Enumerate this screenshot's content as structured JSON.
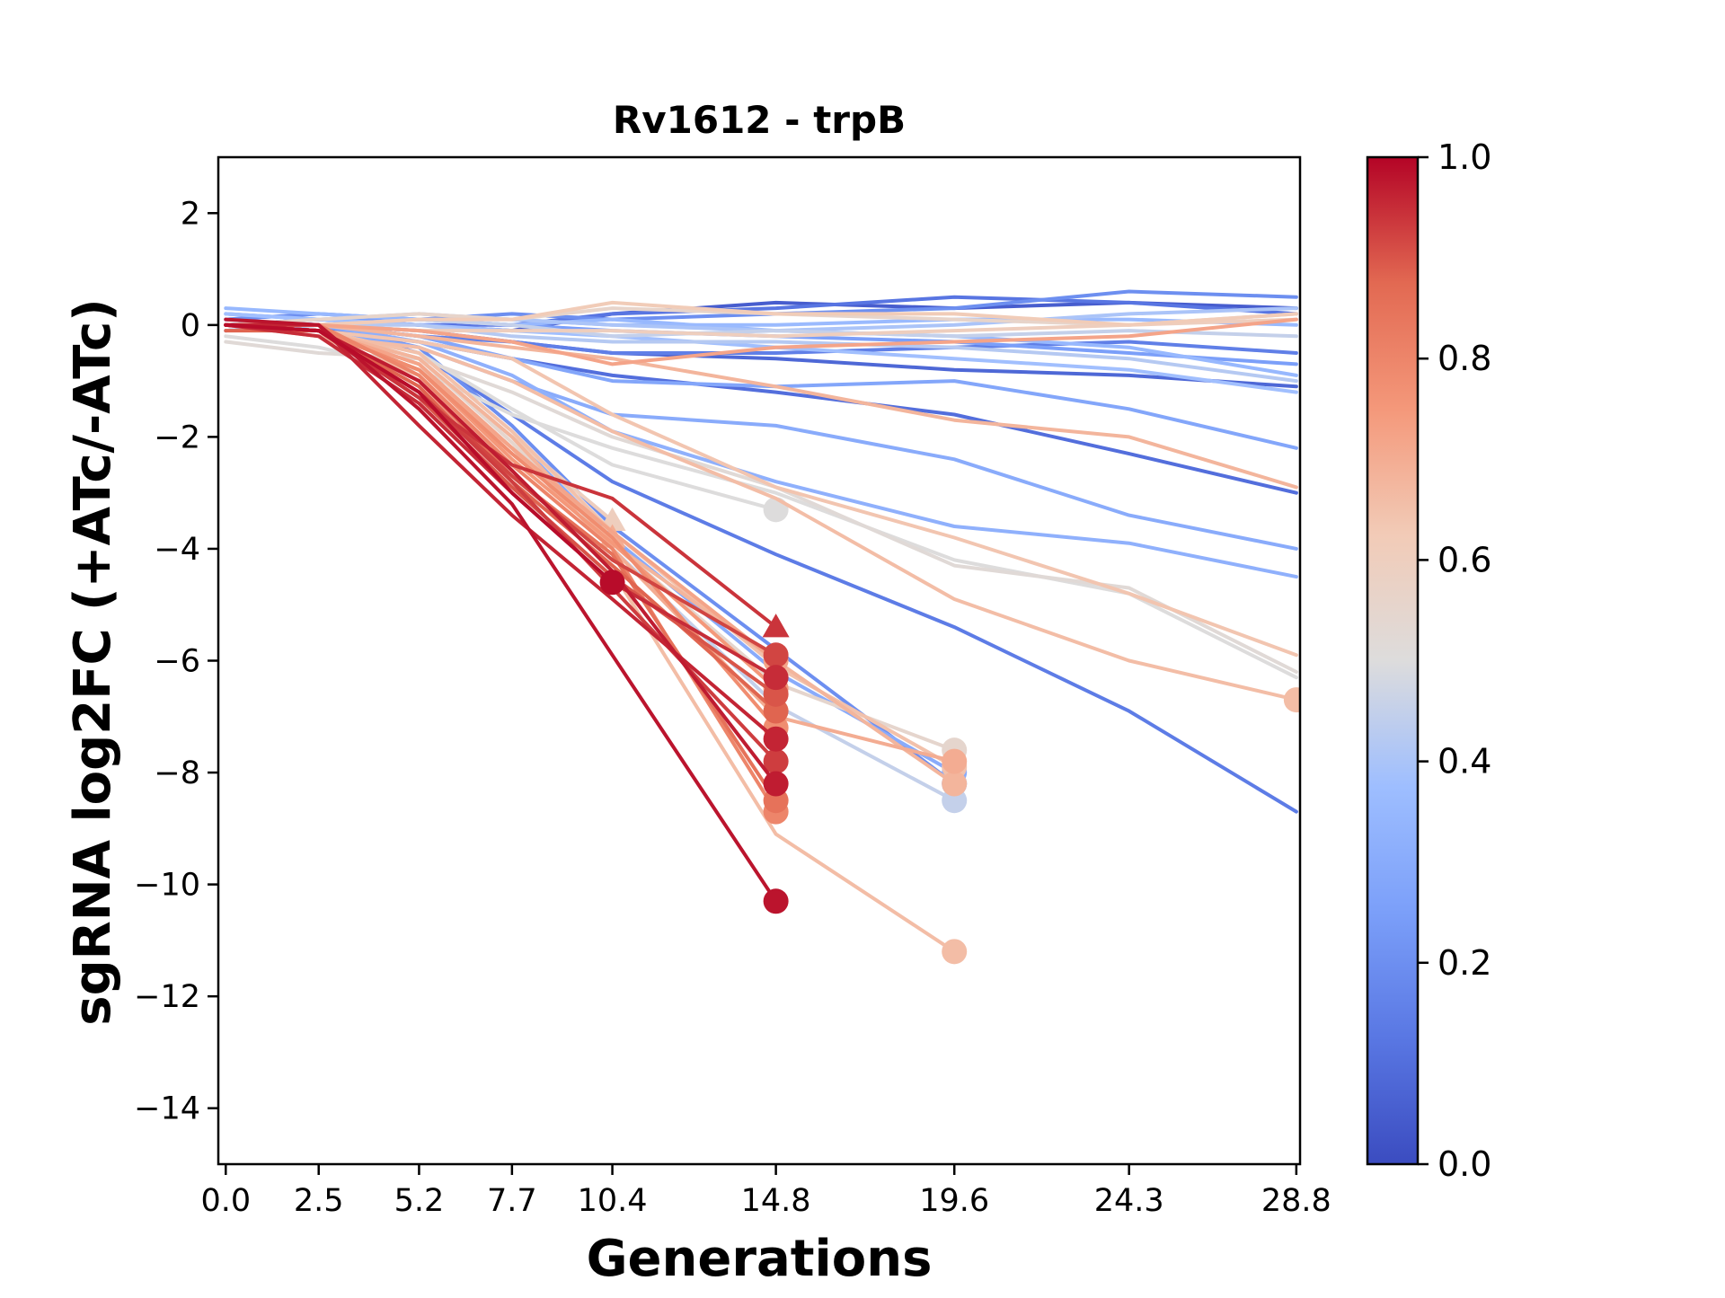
{
  "chart_data": {
    "type": "line",
    "title": "Rv1612 - trpB",
    "xlabel": "Generations",
    "ylabel": "sgRNA log2FC (+ATc/-ATc)",
    "x_ticks": [
      0.0,
      2.5,
      5.2,
      7.7,
      10.4,
      14.8,
      19.6,
      24.3,
      28.8
    ],
    "x_tick_labels": [
      "0.0",
      "2.5",
      "5.2",
      "7.7",
      "10.4",
      "14.8",
      "19.6",
      "24.3",
      "28.8"
    ],
    "xlim": [
      -0.2,
      28.9
    ],
    "ylim": [
      -15,
      3
    ],
    "y_ticks": [
      2,
      0,
      -2,
      -4,
      -6,
      -8,
      -10,
      -12,
      -14
    ],
    "y_tick_labels": [
      "2",
      "0",
      "−2",
      "−4",
      "−6",
      "−8",
      "−10",
      "−12",
      "−14"
    ],
    "colorbar": {
      "colormap": "coolwarm",
      "range": [
        0.0,
        1.0
      ],
      "ticks": [
        0.0,
        0.2,
        0.4,
        0.6,
        0.8,
        1.0
      ],
      "tick_labels": [
        "0.0",
        "0.2",
        "0.4",
        "0.6",
        "0.8",
        "1.0"
      ]
    },
    "grid": false,
    "legend": "none",
    "series": [
      {
        "c": 0.05,
        "x": [
          0,
          2.5,
          5.2,
          7.7,
          10.4,
          14.8,
          19.6,
          24.3,
          28.8
        ],
        "y": [
          0.0,
          0.1,
          0.0,
          -0.1,
          0.2,
          0.4,
          0.3,
          0.4,
          0.3
        ]
      },
      {
        "c": 0.08,
        "x": [
          0,
          2.5,
          5.2,
          7.7,
          10.4,
          14.8,
          19.6,
          24.3,
          28.8
        ],
        "y": [
          0.0,
          0.0,
          -0.1,
          -0.3,
          -0.5,
          -0.6,
          -0.8,
          -0.9,
          -1.1
        ]
      },
      {
        "c": 0.12,
        "x": [
          0,
          2.5,
          5.2,
          7.7,
          10.4,
          14.8,
          19.6,
          24.3,
          28.8
        ],
        "y": [
          0.0,
          0.1,
          0.0,
          0.0,
          0.2,
          0.3,
          0.5,
          0.4,
          0.2
        ]
      },
      {
        "c": 0.15,
        "x": [
          0,
          2.5,
          5.2,
          7.7,
          10.4,
          14.8,
          19.6,
          24.3,
          28.8
        ],
        "y": [
          -0.1,
          0.0,
          -0.2,
          -0.3,
          -0.5,
          -0.5,
          -0.4,
          -0.3,
          -0.5
        ]
      },
      {
        "c": 0.1,
        "x": [
          0,
          2.5,
          5.2,
          7.7,
          10.4,
          14.8,
          19.6,
          24.3,
          28.8
        ],
        "y": [
          0.0,
          -0.1,
          -0.3,
          -0.6,
          -0.9,
          -1.2,
          -1.6,
          -2.3,
          -3.0
        ]
      },
      {
        "c": 0.14,
        "x": [
          0,
          2.5,
          5.2,
          7.7,
          10.4,
          14.8,
          19.6,
          24.3,
          28.8
        ],
        "y": [
          0.0,
          0.0,
          -0.5,
          -1.6,
          -2.8,
          -4.1,
          -5.4,
          -6.9,
          -8.7
        ]
      },
      {
        "c": 0.2,
        "x": [
          0,
          2.5,
          5.2,
          7.7,
          10.4,
          14.8,
          19.6,
          24.3,
          28.8
        ],
        "y": [
          0.1,
          0.2,
          0.1,
          0.2,
          0.1,
          0.2,
          0.3,
          0.6,
          0.5
        ]
      },
      {
        "c": 0.25,
        "x": [
          0,
          2.5,
          5.2,
          7.7,
          10.4,
          14.8,
          19.6,
          24.3,
          28.8
        ],
        "y": [
          0.2,
          0.1,
          0.1,
          0.0,
          -0.1,
          -0.2,
          -0.3,
          -0.5,
          -0.7
        ]
      },
      {
        "c": 0.28,
        "x": [
          0,
          2.5,
          5.2,
          7.7,
          10.4,
          14.8,
          19.6,
          24.3,
          28.8
        ],
        "y": [
          0.0,
          0.0,
          -0.2,
          -0.6,
          -1.0,
          -1.1,
          -1.0,
          -1.5,
          -2.2
        ]
      },
      {
        "c": 0.3,
        "x": [
          0,
          2.5,
          5.2,
          7.7,
          10.4,
          14.8,
          19.6,
          24.3,
          28.8
        ],
        "y": [
          0.0,
          -0.1,
          -0.4,
          -1.0,
          -1.6,
          -1.8,
          -2.4,
          -3.4,
          -4.0
        ]
      },
      {
        "c": 0.32,
        "x": [
          0,
          2.5,
          5.2,
          7.7,
          10.4,
          14.8,
          19.6,
          24.3,
          28.8
        ],
        "y": [
          0.1,
          0.0,
          -0.3,
          -0.9,
          -1.9,
          -2.8,
          -3.6,
          -3.9,
          -4.5
        ]
      },
      {
        "c": 0.35,
        "x": [
          0,
          2.5,
          5.2,
          7.7,
          10.4,
          14.8,
          19.6,
          24.3,
          28.8
        ],
        "y": [
          0.3,
          0.2,
          0.1,
          0.0,
          0.1,
          -0.1,
          -0.2,
          -0.4,
          -0.9
        ]
      },
      {
        "c": 0.38,
        "x": [
          0,
          2.5,
          5.2,
          7.7,
          10.4,
          14.8,
          19.6,
          24.3,
          28.8
        ],
        "y": [
          0.2,
          0.1,
          0.0,
          -0.1,
          -0.2,
          -0.4,
          -0.6,
          -0.8,
          -1.2
        ]
      },
      {
        "c": 0.36,
        "x": [
          0,
          2.5,
          5.2,
          7.7,
          10.4,
          14.8,
          19.6,
          24.3,
          28.8
        ],
        "y": [
          0.0,
          0.0,
          0.1,
          0.1,
          0.0,
          0.0,
          0.1,
          0.1,
          0.0
        ]
      },
      {
        "c": 0.4,
        "x": [
          0,
          2.5,
          5.2,
          7.7,
          10.4,
          14.8,
          19.6,
          24.3,
          28.8
        ],
        "y": [
          0.0,
          0.1,
          0.2,
          0.1,
          0.0,
          -0.1,
          0.0,
          0.2,
          0.3
        ]
      },
      {
        "c": 0.42,
        "x": [
          0,
          2.5,
          5.2,
          7.7,
          10.4,
          14.8,
          19.6,
          24.3,
          28.8
        ],
        "y": [
          -0.1,
          0.0,
          0.0,
          -0.2,
          -0.3,
          -0.3,
          -0.4,
          -0.6,
          -1.0
        ]
      },
      {
        "c": 0.45,
        "x": [
          0,
          2.5,
          5.2,
          7.7,
          10.4,
          14.8,
          19.6,
          24.3,
          28.8
        ],
        "y": [
          0.0,
          0.0,
          0.1,
          0.0,
          -0.2,
          -0.1,
          -0.2,
          -0.1,
          -0.2
        ]
      },
      {
        "c": 0.5,
        "x": [
          0,
          2.5,
          5.2,
          7.7,
          10.4,
          14.8,
          19.6,
          24.3,
          28.8
        ],
        "y": [
          -0.2,
          -0.4,
          -0.8,
          -1.6,
          -2.2,
          -3.0,
          -4.2,
          -4.8,
          -6.3
        ]
      },
      {
        "c": 0.52,
        "x": [
          0,
          2.5,
          5.2,
          7.7,
          10.4,
          14.8,
          19.6,
          24.3,
          28.8
        ],
        "y": [
          -0.3,
          -0.5,
          -0.6,
          -1.2,
          -2.0,
          -2.9,
          -4.3,
          -4.7,
          -6.2
        ]
      },
      {
        "c": 0.56,
        "x": [
          0,
          2.5,
          5.2,
          7.7,
          10.4,
          14.8,
          19.6,
          24.3,
          28.8
        ],
        "y": [
          0.0,
          0.1,
          0.2,
          0.1,
          0.3,
          0.2,
          0.1,
          0.0,
          0.2
        ]
      },
      {
        "c": 0.6,
        "x": [
          0,
          2.5,
          5.2,
          7.7,
          10.4,
          14.8,
          19.6,
          24.3,
          28.8
        ],
        "y": [
          0.0,
          0.0,
          -0.1,
          -0.1,
          -0.1,
          -0.2,
          -0.1,
          0.0,
          0.1
        ]
      },
      {
        "c": 0.62,
        "x": [
          0,
          2.5,
          5.2,
          7.7,
          10.4,
          14.8,
          19.6,
          24.3,
          28.8
        ],
        "y": [
          0.0,
          0.0,
          0.1,
          0.1,
          0.4,
          0.2,
          0.2,
          0.0,
          0.2
        ]
      },
      {
        "c": 0.64,
        "x": [
          0,
          2.5,
          5.2,
          7.7,
          10.4,
          14.8,
          19.6,
          24.3,
          28.8
        ],
        "y": [
          0.0,
          -0.1,
          -0.3,
          -0.6,
          -1.6,
          -2.9,
          -3.8,
          -4.8,
          -5.9
        ]
      },
      {
        "c": 0.66,
        "x": [
          0,
          2.5,
          5.2,
          7.7,
          10.4,
          14.8,
          19.6,
          24.3,
          28.8
        ],
        "y": [
          0.0,
          -0.2,
          -0.4,
          -1.0,
          -1.9,
          -3.1,
          -4.9,
          -6.0,
          -6.7
        ]
      },
      {
        "c": 0.68,
        "x": [
          0,
          2.5,
          5.2,
          7.7,
          10.4,
          14.8,
          19.6,
          24.3,
          28.8
        ],
        "y": [
          0.0,
          0.0,
          -0.2,
          -0.4,
          -0.6,
          -1.1,
          -1.7,
          -2.0,
          -2.9
        ]
      },
      {
        "c": 0.72,
        "x": [
          0,
          2.5,
          5.2,
          7.7,
          10.4,
          14.8,
          19.6,
          24.3,
          28.8
        ],
        "y": [
          0.0,
          0.0,
          -0.1,
          -0.3,
          -0.7,
          -0.4,
          -0.3,
          -0.2,
          0.1
        ]
      },
      {
        "c": 0.5,
        "x": [
          0,
          2.5,
          5.2,
          7.7,
          10.4,
          14.8
        ],
        "y": [
          0.0,
          -0.1,
          -0.5,
          -1.5,
          -2.5,
          -3.3
        ]
      },
      {
        "c": 0.2,
        "x": [
          0,
          2.5,
          5.2,
          7.7,
          10.4,
          14.8,
          19.6
        ],
        "y": [
          0.0,
          0.0,
          -0.4,
          -1.8,
          -3.6,
          -5.8,
          -8.2
        ]
      },
      {
        "c": 0.3,
        "x": [
          0,
          2.5,
          5.2,
          7.7,
          10.4,
          14.8,
          19.6
        ],
        "y": [
          0.0,
          -0.1,
          -0.6,
          -2.0,
          -3.8,
          -6.2,
          -8.0
        ]
      },
      {
        "c": 0.45,
        "x": [
          0,
          2.5,
          5.2,
          7.7,
          10.4,
          14.8,
          19.6
        ],
        "y": [
          0.0,
          -0.1,
          -0.7,
          -2.2,
          -4.0,
          -6.8,
          -8.5
        ]
      },
      {
        "c": 0.55,
        "x": [
          0,
          2.5,
          5.2,
          7.7,
          10.4,
          14.8,
          19.6
        ],
        "y": [
          0.0,
          -0.1,
          -0.6,
          -2.1,
          -3.9,
          -6.4,
          -7.6
        ]
      },
      {
        "c": 0.65,
        "x": [
          0,
          2.5,
          5.2,
          7.7,
          10.4,
          14.8,
          19.6
        ],
        "y": [
          0.0,
          -0.1,
          -0.5,
          -1.9,
          -3.7,
          -6.1,
          -7.9
        ]
      },
      {
        "c": 0.68,
        "x": [
          0,
          2.5,
          5.2,
          7.7,
          10.4,
          14.8,
          19.6
        ],
        "y": [
          0.0,
          -0.1,
          -0.6,
          -2.0,
          -3.9,
          -6.0,
          -8.2
        ]
      },
      {
        "c": 0.66,
        "x": [
          0,
          2.5,
          5.2,
          7.7,
          10.4,
          14.8,
          19.6
        ],
        "y": [
          0.0,
          -0.2,
          -0.9,
          -2.6,
          -4.4,
          -9.1,
          -11.2
        ]
      },
      {
        "c": 0.7,
        "x": [
          0,
          2.5,
          5.2,
          7.7,
          10.4,
          14.8,
          19.6
        ],
        "y": [
          0.0,
          -0.1,
          -0.7,
          -2.2,
          -4.0,
          -7.0,
          -7.8
        ]
      },
      {
        "c": 0.92,
        "x": [
          0,
          2.5,
          5.2,
          7.7,
          10.4,
          14.8
        ],
        "y": [
          0.0,
          -0.1,
          -1.2,
          -2.7,
          -4.2,
          -5.9
        ]
      },
      {
        "c": 0.95,
        "x": [
          0,
          2.5,
          5.2,
          7.7,
          10.4,
          14.8
        ],
        "y": [
          0.0,
          -0.2,
          -1.4,
          -3.0,
          -4.6,
          -6.3
        ]
      },
      {
        "c": 0.98,
        "x": [
          0,
          2.5,
          5.2,
          7.7,
          10.4,
          14.8
        ],
        "y": [
          0.1,
          0.0,
          -1.5,
          -3.2,
          -5.9,
          -10.3
        ]
      },
      {
        "c": 0.9,
        "x": [
          0,
          2.5,
          5.2,
          7.7,
          10.4,
          14.8
        ],
        "y": [
          0.0,
          -0.1,
          -1.3,
          -2.9,
          -4.5,
          -6.6
        ]
      },
      {
        "c": 0.88,
        "x": [
          0,
          2.5,
          5.2,
          7.7,
          10.4,
          14.8
        ],
        "y": [
          -0.1,
          -0.1,
          -1.1,
          -2.8,
          -4.3,
          -6.9
        ]
      },
      {
        "c": 0.96,
        "x": [
          0,
          2.5,
          5.2,
          7.7,
          10.4,
          14.8
        ],
        "y": [
          0.0,
          0.0,
          -1.8,
          -3.4,
          -4.9,
          -7.4
        ]
      },
      {
        "c": 0.93,
        "x": [
          0,
          2.5,
          5.2,
          7.7,
          10.4,
          14.8
        ],
        "y": [
          0.0,
          -0.1,
          -1.2,
          -2.8,
          -4.7,
          -7.8
        ]
      },
      {
        "c": 0.97,
        "x": [
          0,
          2.5,
          5.2,
          7.7,
          10.4,
          14.8
        ],
        "y": [
          0.0,
          -0.1,
          -1.0,
          -2.6,
          -4.4,
          -8.2
        ]
      },
      {
        "c": 0.85,
        "x": [
          0,
          2.5,
          5.2,
          7.7,
          10.4,
          14.8
        ],
        "y": [
          0.0,
          -0.1,
          -1.0,
          -2.7,
          -4.1,
          -8.5
        ]
      },
      {
        "c": 0.8,
        "x": [
          0,
          2.5,
          5.2,
          7.7,
          10.4,
          14.8
        ],
        "y": [
          0.0,
          0.0,
          -0.9,
          -2.5,
          -4.0,
          -8.7
        ]
      },
      {
        "c": 0.78,
        "x": [
          0,
          2.5,
          5.2,
          7.7,
          10.4,
          14.8
        ],
        "y": [
          0.0,
          -0.1,
          -0.8,
          -2.3,
          -3.8,
          -7.2
        ]
      },
      {
        "c": 0.75,
        "x": [
          0,
          2.5,
          5.2,
          7.7,
          10.4,
          14.8
        ],
        "y": [
          0.0,
          -0.1,
          -0.8,
          -2.4,
          -3.9,
          -6.5
        ]
      },
      {
        "c": 0.72,
        "x": [
          0,
          2.5,
          5.2,
          7.7,
          10.4,
          14.8
        ],
        "y": [
          0.0,
          -0.1,
          -0.7,
          -2.2,
          -3.7,
          -6.0
        ]
      },
      {
        "c": 0.94,
        "x": [
          0,
          2.5,
          5.2,
          7.7,
          10.4,
          14.8
        ],
        "y": [
          0.0,
          -0.1,
          -1.3,
          -2.5,
          -3.1,
          -5.4
        ],
        "marker": "triangle"
      },
      {
        "c": 0.99,
        "x": [
          0,
          2.5,
          5.2,
          7.7,
          10.4
        ],
        "y": [
          0.0,
          -0.1,
          -1.2,
          -3.0,
          -4.6
        ]
      },
      {
        "c": 0.7,
        "x": [
          0,
          2.5,
          5.2,
          7.7,
          10.4
        ],
        "y": [
          0.0,
          -0.1,
          -0.8,
          -2.2,
          -3.8
        ],
        "marker": "triangle"
      },
      {
        "c": 0.6,
        "x": [
          0,
          2.5,
          5.2,
          7.7,
          10.4
        ],
        "y": [
          0.0,
          -0.1,
          -0.6,
          -2.0,
          -3.5
        ],
        "marker": "triangle"
      }
    ]
  }
}
